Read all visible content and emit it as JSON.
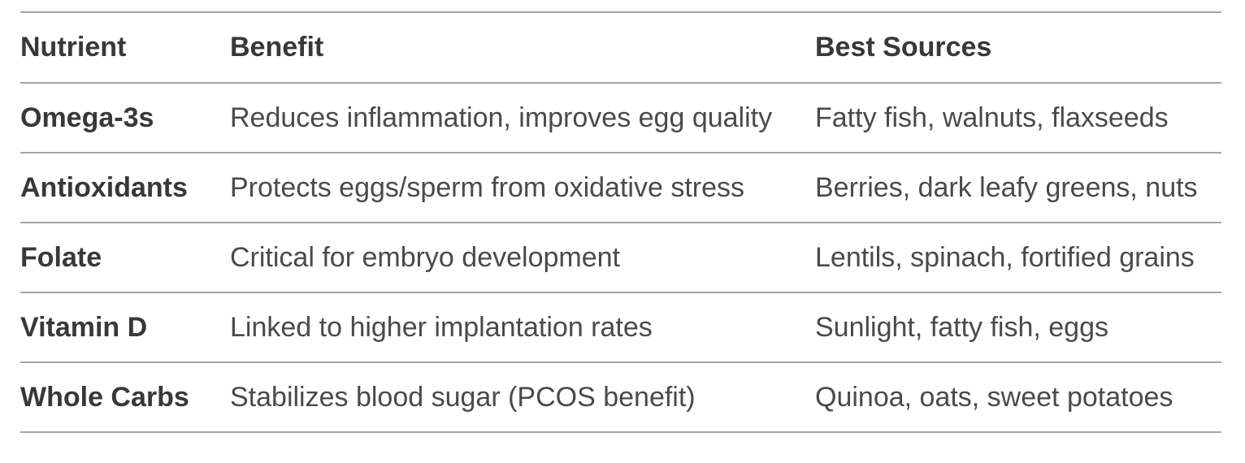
{
  "chart_data": {
    "type": "table",
    "columns": [
      "Nutrient",
      "Benefit",
      "Best Sources"
    ],
    "rows": [
      {
        "nutrient": "Omega-3s",
        "benefit": "Reduces inflammation, improves egg quality",
        "sources": "Fatty fish, walnuts, flaxseeds"
      },
      {
        "nutrient": "Antioxidants",
        "benefit": "Protects eggs/sperm from oxidative stress",
        "sources": "Berries, dark leafy greens, nuts"
      },
      {
        "nutrient": "Folate",
        "benefit": "Critical for embryo development",
        "sources": "Lentils, spinach, fortified grains"
      },
      {
        "nutrient": "Vitamin D",
        "benefit": "Linked to higher implantation rates",
        "sources": "Sunlight, fatty fish, eggs"
      },
      {
        "nutrient": "Whole Carbs",
        "benefit": "Stabilizes blood sugar (PCOS benefit)",
        "sources": "Quinoa, oats, sweet potatoes"
      }
    ],
    "layout": {
      "grid": "horizontal-rules-only",
      "legend": "none"
    }
  },
  "colors": {
    "border": "#a5a5a5",
    "header_text": "#383838",
    "body_text": "#4a4a4a",
    "background": "#ffffff"
  }
}
